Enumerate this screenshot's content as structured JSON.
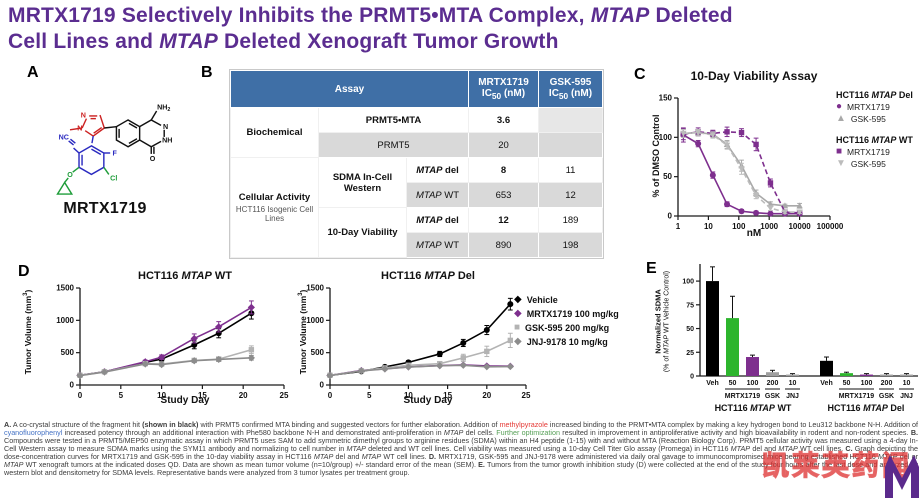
{
  "title": {
    "line1": [
      {
        "t": "MRTX1719 Selectively Inhibits the PRMT5•MTA Complex, ",
        "b": 1
      },
      {
        "t": "MTAP",
        "b": 1,
        "i": 1
      },
      {
        "t": " Deleted",
        "b": 1
      }
    ],
    "line2": [
      {
        "t": "Cell Lines and ",
        "b": 1
      },
      {
        "t": "MTAP",
        "b": 1,
        "i": 1
      },
      {
        "t": " Deleted Xenograft Tumor Growth",
        "b": 1
      }
    ]
  },
  "panels": {
    "a": "A",
    "b": "B",
    "c": "C",
    "d": "D",
    "e": "E"
  },
  "colors": {
    "title_purple": "#5b2d90",
    "series_purple": "#7e2f8e",
    "table_header_blue": "#3f6fa6",
    "bar_green": "#2db52d",
    "gray": "#a9a9a9"
  },
  "molecule": {
    "name": "MRTX1719",
    "atoms": {
      "n1": "N",
      "n2": "N",
      "nc": "NC",
      "f": "F",
      "o_ether": "O",
      "cl": "Cl",
      "nh2_pre": "NH",
      "nh2_sub": "2",
      "n_ring": "N",
      "nh_ring": "NH",
      "o_ketone": "O"
    }
  },
  "table": {
    "header": {
      "assay": "Assay",
      "mrtx_name": "MRTX1719",
      "gsk_name": "GSK-595",
      "ic": "IC",
      "ic_sub": "50",
      "nm": " (nM)"
    },
    "biochemical": "Biochemical",
    "cellular_1": "Cellular Activity",
    "cellular_2": "HCT116 Isogenic Cell Lines",
    "sdma_label": "SDMA In-Cell Western",
    "viability_label": "10-Day Viability",
    "rows": [
      {
        "assay": "PRMT5•MTA",
        "mrtx": "3.6",
        "gsk": ""
      },
      {
        "assay": "PRMT5",
        "mrtx": "20",
        "gsk": ""
      },
      {
        "geno_i": "MTAP",
        "geno_s": " del",
        "mrtx": "8",
        "gsk": "11"
      },
      {
        "geno_i": "MTAP",
        "geno_s": " WT",
        "mrtx": "653",
        "gsk": "12"
      },
      {
        "geno_i": "MTAP",
        "geno_s": " del",
        "mrtx": "12",
        "gsk": "189"
      },
      {
        "geno_i": "MTAP",
        "geno_s": " WT",
        "mrtx": "890",
        "gsk": "198"
      }
    ]
  },
  "panel_c": {
    "title": "10-Day Viability Assay",
    "xlabel": "nM",
    "ylabel": "% of DMSO Control",
    "legend": {
      "group1_title": [
        {
          "t": "HCT116 ",
          "b": 1
        },
        {
          "t": "MTAP",
          "b": 1,
          "i": 1
        },
        {
          "t": " Del",
          "b": 1
        }
      ],
      "group1_items": [
        {
          "label": "MRTX1719",
          "color": "#7e2f8e",
          "marker": "●",
          "icon": "circle-marker-icon"
        },
        {
          "label": "GSK-595",
          "color": "#a9a9a9",
          "marker": "▲",
          "icon": "triangle-up-marker-icon"
        }
      ],
      "group2_title": [
        {
          "t": "HCT116 ",
          "b": 1
        },
        {
          "t": "MTAP",
          "b": 1,
          "i": 1
        },
        {
          "t": " WT",
          "b": 1
        }
      ],
      "group2_items": [
        {
          "label": "MRTX1719",
          "color": "#7e2f8e",
          "marker": "■",
          "icon": "square-marker-icon"
        },
        {
          "label": "GSK-595",
          "color": "#bcbcbc",
          "marker": "▼",
          "icon": "triangle-down-marker-icon"
        }
      ]
    }
  },
  "panel_d": {
    "left_title": [
      {
        "t": "HCT116 ",
        "b": 1
      },
      {
        "t": "MTAP",
        "b": 1,
        "i": 1
      },
      {
        "t": " WT",
        "b": 1
      }
    ],
    "right_title": [
      {
        "t": "HCT116 ",
        "b": 1
      },
      {
        "t": "MTAP",
        "b": 1,
        "i": 1
      },
      {
        "t": " Del",
        "b": 1
      }
    ],
    "xlabel": "Study Day",
    "ylabel_pre": "Tumor Volume (mm",
    "ylabel_sup": "3",
    "ylabel_post": ")",
    "legend_items": [
      {
        "label": "Vehicle",
        "color": "#000000",
        "marker": "◆",
        "icon": "diamond-marker-icon"
      },
      {
        "label": "MRTX1719 100 mg/kg",
        "color": "#7e2f8e",
        "marker": "◆",
        "icon": "diamond-marker-icon"
      },
      {
        "label": "GSK-595 200 mg/kg",
        "color": "#b3b3b3",
        "marker": "■",
        "icon": "square-marker-icon"
      },
      {
        "label": "JNJ-9178 10 mg/kg",
        "color": "#8c8c8c",
        "marker": "◆",
        "icon": "diamond-marker-icon"
      }
    ]
  },
  "panel_e": {
    "ylabel_line1": "Normalized SDMA",
    "ylabel_line2": [
      {
        "t": "(% of "
      },
      {
        "t": "MTAP",
        "i": 1
      },
      {
        "t": " WT Vehicle Control)"
      }
    ],
    "group1_label": [
      {
        "t": "HCT116 ",
        "b": 1
      },
      {
        "t": "MTAP",
        "b": 1,
        "i": 1
      },
      {
        "t": " WT",
        "b": 1
      }
    ],
    "group2_label": [
      {
        "t": "HCT116 ",
        "b": 1
      },
      {
        "t": "MTAP",
        "b": 1,
        "i": 1
      },
      {
        "t": " Del",
        "b": 1
      }
    ]
  },
  "watermark": {
    "text": "凯莱英药闻"
  },
  "caption": {
    "segments": [
      {
        "t": "A.",
        "b": 1
      },
      {
        "t": " A co-crystal structure of the fragment hit "
      },
      {
        "t": "(shown in black)",
        "b": 1
      },
      {
        "t": " with PRMT5 confirmed MTA binding and suggested vectors for further elaboration. Addition of "
      },
      {
        "t": "methylpyrazole",
        "c": "#e53935"
      },
      {
        "t": " increased binding to the PRMT•MTA complex by making a key hydrogen bond to Leu312 backbone N-H. Addition of "
      },
      {
        "t": "cyanofluorophenyl",
        "c": "#4472c4"
      },
      {
        "t": " increased potency through an additional interaction with Phe580 backbone N-H and demonstrated anti-proliferation in "
      },
      {
        "t": "MTAP",
        "i": 1
      },
      {
        "t": " del cells. "
      },
      {
        "t": "Further optimization",
        "c": "#57a057"
      },
      {
        "t": " resulted in improvement in antiproliferative activity and high bioavailability in rodent and non-rodent species. "
      },
      {
        "t": "B.",
        "b": 1
      },
      {
        "t": " Compounds were tested in a PRMT5/MEP50 enzymatic assay in which PRMT5 uses SAM to add symmetric dimethyl groups to arginine residues (SDMA) within an H4 peptide (1-15) with and without MTA (Reaction Biology Corp). PRMT5 cellular activity was measured using a 4-day In-Cell Western assay to measure SDMA marks using the SYM11 antibody and normalizing to cell number in "
      },
      {
        "t": "MTAP",
        "i": 1
      },
      {
        "t": " deleted and WT cell lines. Cell viability was measured using a 10-day Cell Titer Glo assay (Promega) in HCT116 "
      },
      {
        "t": "MTAP",
        "i": 1
      },
      {
        "t": " del and "
      },
      {
        "t": "MTAP",
        "i": 1
      },
      {
        "t": " WT cell lines. "
      },
      {
        "t": "C.",
        "b": 1
      },
      {
        "t": " Graph depicting the dose-concentration curves for MRTX1719 and GSK-595 in the 10-day viability assay in HCT116 "
      },
      {
        "t": "MTAP",
        "i": 1
      },
      {
        "t": " del and "
      },
      {
        "t": "MTAP",
        "i": 1
      },
      {
        "t": " WT cell lines. "
      },
      {
        "t": "D.",
        "b": 1
      },
      {
        "t": " MRTX1719, GSK-595 and JNJ-9178 were administered via daily oral gavage to immunocompromised mice bearing established HCT116 "
      },
      {
        "t": "MTAP",
        "i": 1
      },
      {
        "t": " del or "
      },
      {
        "t": "MTAP",
        "i": 1
      },
      {
        "t": " WT xenograft tumors at the indicated doses QD. Data are shown as mean tumor volume (n=10/group) +/- standard error of the mean (SEM). "
      },
      {
        "t": "E.",
        "b": 1
      },
      {
        "t": " Tumors from the tumor growth inhibition study (D) were collected at the end of the study four hours after the last dose and analyzed by western blot and densitometry for SDMA levels. Representative bands were analyzed from 3 tumor lysates per treatment group."
      }
    ]
  },
  "chart_data": [
    {
      "id": "viability",
      "type": "line",
      "title": "10-Day Viability Assay",
      "xlabel": "nM",
      "ylabel": "% of DMSO Control",
      "xscale": "log",
      "xlim": [
        1,
        100000
      ],
      "ylim": [
        0,
        150
      ],
      "yticks": [
        0,
        50,
        100,
        150
      ],
      "xticks": [
        1,
        10,
        100,
        1000,
        10000,
        100000
      ],
      "xtick_labels": [
        "1",
        "10",
        "100",
        "1000",
        "10000",
        "100000"
      ],
      "grid": false,
      "legend_position": "right",
      "layout": {
        "l": 26,
        "r": 22,
        "t": 14,
        "b": 34,
        "tick_font": 8
      },
      "series": [
        {
          "name": "HCT116 MTAP Del MRTX1719",
          "color": "#7e2f8e",
          "marker": "circle",
          "dash": false,
          "x": [
            1.5,
            4.6,
            14,
            41,
            123,
            370,
            1100,
            3300,
            10000
          ],
          "y": [
            103,
            92,
            52,
            15,
            6,
            4,
            3,
            3,
            3
          ],
          "err": [
            9,
            4,
            4,
            3,
            2,
            2,
            2,
            2,
            2
          ]
        },
        {
          "name": "HCT116 MTAP Del GSK-595",
          "color": "#a9a9a9",
          "marker": "triangle-up",
          "dash": false,
          "x": [
            1.5,
            4.6,
            14,
            41,
            123,
            370,
            1100,
            3300,
            10000
          ],
          "y": [
            105,
            106,
            104,
            91,
            64,
            29,
            15,
            13,
            13
          ],
          "err": [
            5,
            4,
            4,
            5,
            7,
            4,
            3,
            2,
            3
          ]
        },
        {
          "name": "HCT116 MTAP WT MRTX1719",
          "color": "#7e2f8e",
          "marker": "square",
          "dash": true,
          "x": [
            1.5,
            4.6,
            14,
            41,
            123,
            370,
            1100,
            3300,
            10000
          ],
          "y": [
            104,
            107,
            105,
            107,
            106,
            91,
            42,
            5,
            4
          ],
          "err": [
            7,
            5,
            4,
            6,
            5,
            8,
            5,
            2,
            2
          ]
        },
        {
          "name": "HCT116 MTAP WT GSK-595",
          "color": "#bcbcbc",
          "marker": "triangle-down",
          "dash": true,
          "x": [
            1.5,
            4.6,
            14,
            41,
            123,
            370,
            1100,
            3300,
            10000
          ],
          "y": [
            105,
            106,
            103,
            90,
            60,
            26,
            10,
            5,
            5
          ],
          "err": [
            5,
            4,
            4,
            5,
            7,
            4,
            3,
            2,
            2
          ]
        }
      ]
    },
    {
      "id": "tgi_wt",
      "type": "line",
      "title": "HCT116 MTAP WT",
      "xlabel": "Study Day",
      "ylabel": "Tumor Volume (mm3)",
      "xscale": "linear",
      "xlim": [
        0,
        25
      ],
      "ylim": [
        0,
        1500
      ],
      "yticks": [
        0,
        500,
        1000,
        1500
      ],
      "xticks": [
        0,
        5,
        10,
        15,
        20,
        25
      ],
      "grid": false,
      "layout": {
        "l": 34,
        "r": 12,
        "t": 6,
        "b": 28,
        "tick_font": 8
      },
      "series": [
        {
          "name": "Vehicle",
          "color": "#000000",
          "marker": "circle",
          "dash": false,
          "x": [
            0,
            3,
            8,
            10,
            14,
            17,
            21
          ],
          "y": [
            150,
            205,
            350,
            400,
            620,
            800,
            1110
          ],
          "err": [
            15,
            15,
            25,
            30,
            60,
            70,
            90
          ]
        },
        {
          "name": "MRTX1719 100 mg/kg",
          "color": "#7e2f8e",
          "marker": "diamond",
          "dash": false,
          "x": [
            0,
            3,
            8,
            10,
            14,
            17,
            21
          ],
          "y": [
            150,
            205,
            360,
            430,
            720,
            900,
            1200
          ],
          "err": [
            15,
            15,
            25,
            35,
            70,
            80,
            100
          ]
        },
        {
          "name": "GSK-595 200 mg/kg",
          "color": "#b3b3b3",
          "marker": "square",
          "dash": false,
          "x": [
            0,
            3,
            8,
            10,
            14,
            17,
            21
          ],
          "y": [
            150,
            205,
            330,
            325,
            380,
            400,
            545
          ],
          "err": [
            12,
            12,
            20,
            22,
            30,
            35,
            60
          ]
        },
        {
          "name": "JNJ-9178 10 mg/kg",
          "color": "#8c8c8c",
          "marker": "diamond",
          "dash": false,
          "x": [
            0,
            3,
            8,
            10,
            14,
            17,
            21
          ],
          "y": [
            145,
            200,
            325,
            315,
            375,
            395,
            420
          ],
          "err": [
            10,
            12,
            18,
            20,
            25,
            28,
            35
          ]
        }
      ]
    },
    {
      "id": "tgi_del",
      "type": "line",
      "title": "HCT116 MTAP Del",
      "xlabel": "Study Day",
      "ylabel": "Tumor Volume (mm3)",
      "xscale": "linear",
      "xlim": [
        0,
        25
      ],
      "ylim": [
        0,
        1500
      ],
      "yticks": [
        0,
        500,
        1000,
        1500
      ],
      "xticks": [
        0,
        5,
        10,
        15,
        20,
        25
      ],
      "grid": false,
      "layout": {
        "l": 36,
        "r": 8,
        "t": 6,
        "b": 28,
        "tick_font": 8
      },
      "series": [
        {
          "name": "Vehicle",
          "color": "#000000",
          "marker": "circle",
          "dash": false,
          "x": [
            0,
            4,
            7,
            10,
            14,
            17,
            20,
            23
          ],
          "y": [
            150,
            210,
            280,
            350,
            480,
            650,
            850,
            1250
          ],
          "err": [
            10,
            15,
            20,
            25,
            40,
            55,
            70,
            90
          ]
        },
        {
          "name": "MRTX1719 100 mg/kg",
          "color": "#7e2f8e",
          "marker": "diamond",
          "dash": false,
          "x": [
            0,
            4,
            7,
            10,
            14,
            17,
            20,
            23
          ],
          "y": [
            148,
            225,
            250,
            280,
            300,
            310,
            295,
            290
          ],
          "err": [
            8,
            10,
            10,
            12,
            12,
            14,
            12,
            12
          ]
        },
        {
          "name": "GSK-595 200 mg/kg",
          "color": "#b3b3b3",
          "marker": "square",
          "dash": false,
          "x": [
            0,
            4,
            7,
            10,
            14,
            17,
            20,
            23
          ],
          "y": [
            150,
            220,
            265,
            305,
            330,
            420,
            520,
            690
          ],
          "err": [
            10,
            14,
            18,
            22,
            28,
            55,
            80,
            110
          ]
        },
        {
          "name": "JNJ-9178 10 mg/kg",
          "color": "#8c8c8c",
          "marker": "diamond",
          "dash": false,
          "x": [
            0,
            4,
            7,
            10,
            14,
            17,
            20,
            23
          ],
          "y": [
            145,
            218,
            248,
            278,
            298,
            305,
            282,
            285
          ],
          "err": [
            8,
            10,
            10,
            12,
            12,
            12,
            12,
            12
          ]
        }
      ]
    },
    {
      "id": "sdma_bars",
      "type": "bar",
      "title": "",
      "xlabel": "",
      "ylabel": "Normalized SDMA (% of MTAP WT Vehicle Control)",
      "ylim": [
        0,
        118
      ],
      "yticks": [
        0,
        25,
        50,
        75,
        100
      ],
      "tick_labels": [
        "Veh",
        "50",
        "100",
        "200",
        "10"
      ],
      "colors": [
        "#000000",
        "#2db52d",
        "#7e2f8e",
        "#9f9f9f",
        "#9f9f9f"
      ],
      "groups": [
        {
          "name": "HCT116 MTAP WT",
          "values": [
            100,
            61,
            20,
            4,
            1.5
          ],
          "errors": [
            15,
            23,
            2,
            2,
            1
          ]
        },
        {
          "name": "HCT116 MTAP Del",
          "values": [
            16,
            3,
            1.5,
            1.5,
            1.5
          ],
          "errors": [
            4,
            1,
            1,
            1,
            1
          ]
        }
      ],
      "brackets": [
        {
          "from": 1,
          "to": 2,
          "label": "MRTX1719"
        },
        {
          "from": 3,
          "to": 3,
          "label": "GSK"
        },
        {
          "from": 4,
          "to": 4,
          "label": "JNJ"
        }
      ],
      "layout": {
        "l": 24,
        "r": 4,
        "t": 2,
        "b": 44,
        "slotW": 20,
        "barW": 13,
        "groupGap": 14,
        "startPad": 6,
        "tick_font": 7
      }
    }
  ]
}
